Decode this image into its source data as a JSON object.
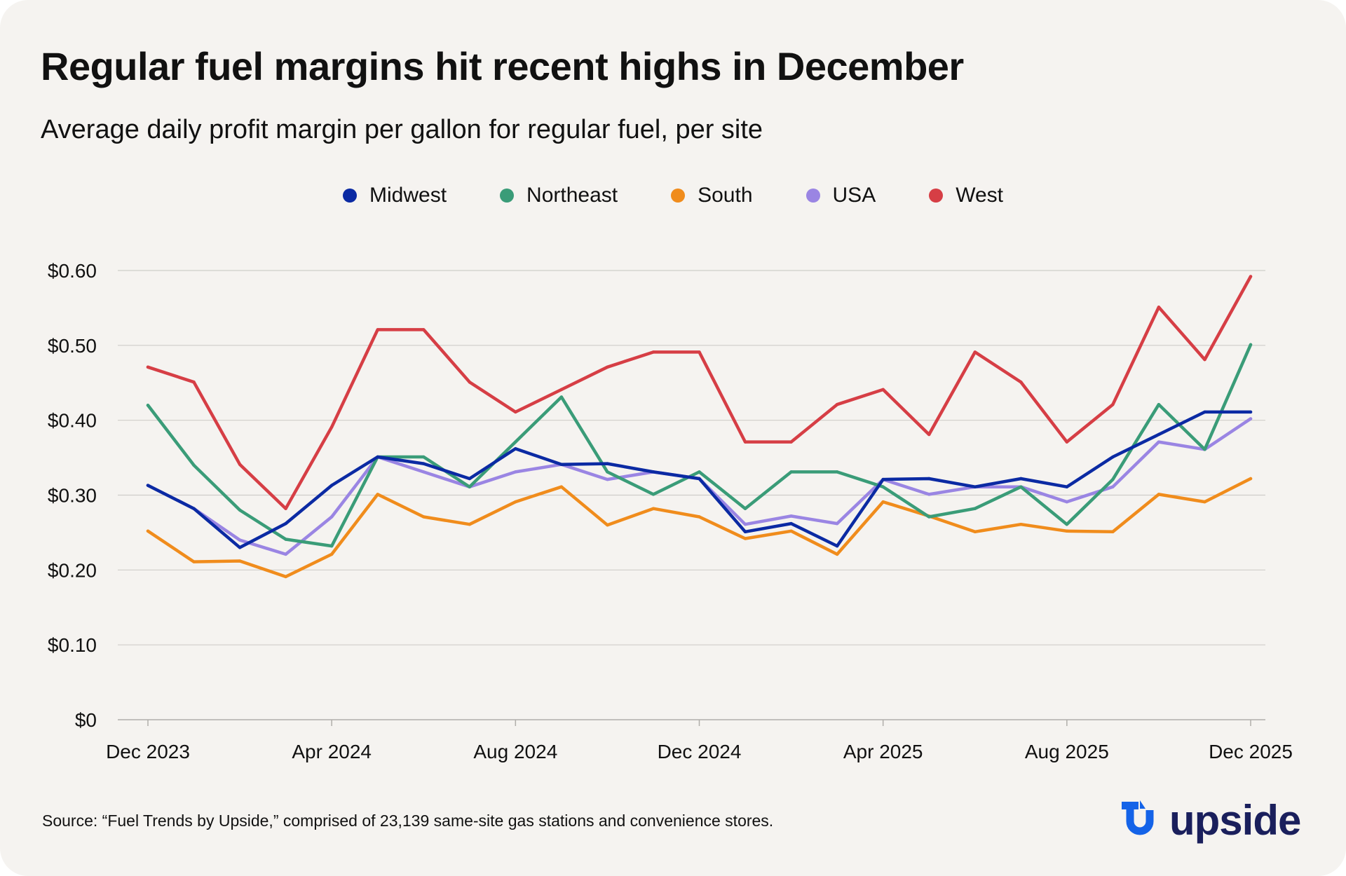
{
  "title": "Regular fuel margins hit recent highs in December",
  "subtitle": "Average daily profit margin per gallon for regular fuel, per site",
  "source": "Source: “Fuel Trends by Upside,” comprised of 23,139 same-site gas stations and convenience stores.",
  "logo_text": "upside",
  "colors": {
    "background": "#f5f3f0",
    "grid": "#cfcdc9",
    "axis": "#b0aeaa",
    "text": "#111111",
    "logo": "#1a1f5c",
    "logo_accent": "#1463e8"
  },
  "chart_data": {
    "type": "line",
    "title": "Regular fuel margins hit recent highs in December",
    "xlabel": "",
    "ylabel": "",
    "ylim": [
      0,
      0.6
    ],
    "yticks": [
      0,
      0.1,
      0.2,
      0.3,
      0.4,
      0.5,
      0.6
    ],
    "ytick_labels": [
      "$0",
      "$0.10",
      "$0.20",
      "$0.30",
      "$0.40",
      "$0.50",
      "$0.60"
    ],
    "grid": true,
    "legend_position": "top-center",
    "x": [
      "Dec 2023",
      "Jan 2024",
      "Feb 2024",
      "Mar 2024",
      "Apr 2024",
      "May 2024",
      "Jun 2024",
      "Jul 2024",
      "Aug 2024",
      "Sep 2024",
      "Oct 2024",
      "Nov 2024",
      "Dec 2024",
      "Jan 2025",
      "Feb 2025",
      "Mar 2025",
      "Apr 2025",
      "May 2025",
      "Jun 2025",
      "Jul 2025",
      "Aug 2025",
      "Sep 2025",
      "Oct 2025",
      "Nov 2025",
      "Dec 2025"
    ],
    "xtick_labels": [
      {
        "index": 0,
        "label": "Dec 2023"
      },
      {
        "index": 4,
        "label": "Apr 2024"
      },
      {
        "index": 8,
        "label": "Aug 2024"
      },
      {
        "index": 12,
        "label": "Dec 2024"
      },
      {
        "index": 16,
        "label": "Apr 2025"
      },
      {
        "index": 20,
        "label": "Aug 2025"
      },
      {
        "index": 24,
        "label": "Dec 2025"
      }
    ],
    "series": [
      {
        "name": "Midwest",
        "color": "#0b2aa3",
        "values": [
          0.313,
          0.282,
          0.23,
          0.262,
          0.313,
          0.351,
          0.342,
          0.322,
          0.362,
          0.341,
          0.342,
          0.331,
          0.322,
          0.251,
          0.262,
          0.232,
          0.321,
          0.322,
          0.311,
          0.322,
          0.311,
          0.351,
          0.381,
          0.411,
          0.411
        ]
      },
      {
        "name": "Northeast",
        "color": "#3a9c78",
        "values": [
          0.42,
          0.34,
          0.28,
          0.241,
          0.232,
          0.351,
          0.351,
          0.311,
          0.371,
          0.431,
          0.331,
          0.301,
          0.331,
          0.282,
          0.331,
          0.331,
          0.311,
          0.271,
          0.282,
          0.311,
          0.261,
          0.321,
          0.421,
          0.361,
          0.501
        ]
      },
      {
        "name": "South",
        "color": "#f08c1c",
        "values": [
          0.252,
          0.211,
          0.212,
          0.191,
          0.221,
          0.301,
          0.271,
          0.261,
          0.291,
          0.311,
          0.26,
          0.282,
          0.271,
          0.242,
          0.252,
          0.221,
          0.291,
          0.272,
          0.251,
          0.261,
          0.252,
          0.251,
          0.301,
          0.291,
          0.322
        ]
      },
      {
        "name": "USA",
        "color": "#9a85e3",
        "values": [
          0.313,
          0.282,
          0.24,
          0.221,
          0.271,
          0.351,
          0.331,
          0.311,
          0.331,
          0.341,
          0.321,
          0.331,
          0.322,
          0.261,
          0.272,
          0.262,
          0.321,
          0.301,
          0.311,
          0.311,
          0.291,
          0.311,
          0.371,
          0.361,
          0.402
        ]
      },
      {
        "name": "West",
        "color": "#d63e45",
        "values": [
          0.471,
          0.451,
          0.341,
          0.282,
          0.391,
          0.521,
          0.521,
          0.451,
          0.411,
          0.441,
          0.471,
          0.491,
          0.491,
          0.371,
          0.371,
          0.421,
          0.441,
          0.381,
          0.491,
          0.451,
          0.371,
          0.421,
          0.551,
          0.481,
          0.592
        ]
      }
    ]
  }
}
